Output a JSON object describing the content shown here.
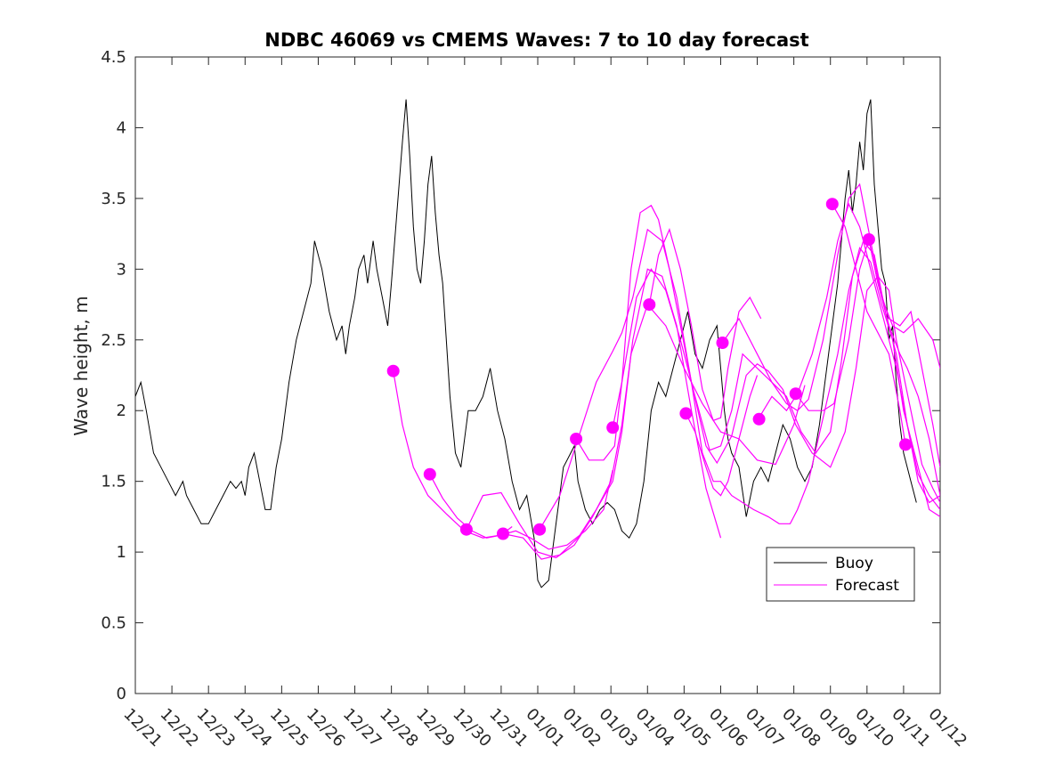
{
  "chart_data": {
    "type": "line",
    "title": "NDBC 46069 vs CMEMS Waves: 7 to 10 day forecast",
    "xlabel": "",
    "ylabel": "Wave height, m",
    "xlim": [
      0,
      22
    ],
    "ylim": [
      0,
      4.5
    ],
    "x_tick_labels": [
      "12/21",
      "12/22",
      "12/23",
      "12/24",
      "12/25",
      "12/26",
      "12/27",
      "12/28",
      "12/29",
      "12/30",
      "12/31",
      "01/01",
      "01/02",
      "01/03",
      "01/04",
      "01/05",
      "01/06",
      "01/07",
      "01/08",
      "01/09",
      "01/10",
      "01/11",
      "01/12"
    ],
    "y_ticks": [
      0,
      0.5,
      1,
      1.5,
      2,
      2.5,
      3,
      3.5,
      4,
      4.5
    ],
    "y_tick_labels": [
      "0",
      "0.5",
      "1",
      "1.5",
      "2",
      "2.5",
      "3",
      "3.5",
      "4",
      "4.5"
    ],
    "colors": {
      "buoy": "#000000",
      "forecast": "#ff00ff"
    },
    "legend": {
      "location": "bottom-right",
      "entries": [
        "Buoy",
        "Forecast"
      ]
    },
    "buoy": {
      "name": "Buoy",
      "x": [
        0,
        0.15,
        0.3,
        0.5,
        0.7,
        0.9,
        1.1,
        1.3,
        1.4,
        1.6,
        1.8,
        2.0,
        2.2,
        2.4,
        2.6,
        2.75,
        2.9,
        3.0,
        3.1,
        3.25,
        3.4,
        3.55,
        3.7,
        3.85,
        4.0,
        4.2,
        4.4,
        4.6,
        4.8,
        4.9,
        5.1,
        5.3,
        5.4,
        5.5,
        5.65,
        5.75,
        5.85,
        6.0,
        6.1,
        6.25,
        6.35,
        6.5,
        6.6,
        6.75,
        6.9,
        7.0,
        7.15,
        7.3,
        7.4,
        7.5,
        7.6,
        7.7,
        7.8,
        7.9,
        8.0,
        8.1,
        8.2,
        8.3,
        8.4,
        8.5,
        8.6,
        8.75,
        8.9,
        9.1,
        9.3,
        9.5,
        9.7,
        9.9,
        10.1,
        10.3,
        10.5,
        10.7,
        10.9,
        11.0,
        11.1,
        11.3,
        11.5,
        11.7,
        11.9,
        12.0,
        12.1,
        12.3,
        12.5,
        12.7,
        12.9,
        13.1,
        13.3,
        13.5,
        13.7,
        13.9,
        14.1,
        14.3,
        14.5,
        14.7,
        14.9,
        15.1,
        15.3,
        15.5,
        15.7,
        15.9,
        16.0,
        16.1,
        16.2,
        16.3,
        16.5,
        16.7,
        16.9,
        17.1,
        17.3,
        17.5,
        17.7,
        17.9,
        18.1,
        18.3,
        18.5,
        18.7,
        18.9,
        19.0,
        19.2,
        19.4,
        19.5,
        19.6,
        19.7,
        19.8,
        19.9,
        20.0,
        20.1,
        20.2,
        20.3,
        20.4,
        20.5,
        20.6,
        20.7,
        20.8,
        20.9,
        21.0,
        21.1,
        21.2,
        21.35
      ],
      "y": [
        2.1,
        2.2,
        2.0,
        1.7,
        1.6,
        1.5,
        1.4,
        1.5,
        1.4,
        1.3,
        1.2,
        1.2,
        1.3,
        1.4,
        1.5,
        1.45,
        1.5,
        1.4,
        1.6,
        1.7,
        1.5,
        1.3,
        1.3,
        1.6,
        1.8,
        2.2,
        2.5,
        2.7,
        2.9,
        3.2,
        3.0,
        2.7,
        2.6,
        2.5,
        2.6,
        2.4,
        2.6,
        2.8,
        3.0,
        3.1,
        2.9,
        3.2,
        3.0,
        2.8,
        2.6,
        2.9,
        3.4,
        3.9,
        4.2,
        3.8,
        3.3,
        3.0,
        2.9,
        3.2,
        3.6,
        3.8,
        3.4,
        3.1,
        2.9,
        2.5,
        2.1,
        1.7,
        1.6,
        2.0,
        2.0,
        2.1,
        2.3,
        2.0,
        1.8,
        1.5,
        1.3,
        1.4,
        1.1,
        0.8,
        0.75,
        0.8,
        1.2,
        1.6,
        1.7,
        1.75,
        1.5,
        1.3,
        1.2,
        1.3,
        1.35,
        1.3,
        1.15,
        1.1,
        1.2,
        1.5,
        2.0,
        2.2,
        2.1,
        2.3,
        2.5,
        2.7,
        2.4,
        2.3,
        2.5,
        2.6,
        2.3,
        2.0,
        1.8,
        1.7,
        1.6,
        1.25,
        1.5,
        1.6,
        1.5,
        1.7,
        1.9,
        1.8,
        1.6,
        1.5,
        1.6,
        1.9,
        2.3,
        2.5,
        2.9,
        3.5,
        3.7,
        3.4,
        3.6,
        3.9,
        3.7,
        4.1,
        4.2,
        3.6,
        3.3,
        3.0,
        2.9,
        2.5,
        2.6,
        2.2,
        1.9,
        1.7,
        1.6,
        1.5,
        1.35
      ]
    },
    "forecast_lines": [
      {
        "x": [
          7.05,
          7.3,
          7.6,
          8.0,
          8.5,
          9.0,
          9.5,
          10.0,
          10.3
        ],
        "y": [
          2.28,
          1.9,
          1.6,
          1.4,
          1.27,
          1.15,
          1.1,
          1.12,
          1.18
        ]
      },
      {
        "x": [
          8.05,
          8.4,
          8.8,
          9.2,
          9.6,
          10.0,
          10.4,
          10.8,
          11.3,
          11.8,
          12.3,
          12.8,
          13.05
        ],
        "y": [
          1.55,
          1.38,
          1.24,
          1.15,
          1.1,
          1.12,
          1.15,
          1.1,
          1.02,
          1.05,
          1.15,
          1.3,
          1.58
        ]
      },
      {
        "x": [
          9.05,
          9.5,
          10.0,
          10.5,
          11.0,
          11.5,
          12.0,
          12.5,
          13.0,
          13.3,
          13.6,
          14.0,
          14.4,
          14.8,
          15.2,
          15.6,
          16.0
        ],
        "y": [
          1.16,
          1.4,
          1.42,
          1.2,
          1.0,
          0.96,
          1.05,
          1.25,
          1.5,
          1.9,
          2.5,
          3.0,
          2.95,
          2.6,
          2.0,
          1.45,
          1.1
        ]
      },
      {
        "x": [
          10.05,
          10.6,
          11.1,
          11.6,
          12.1,
          12.6,
          13.05,
          13.3,
          13.55,
          14.0,
          14.5,
          15.0,
          15.5,
          16.0,
          16.5,
          17.0,
          17.5,
          18.0,
          18.3
        ],
        "y": [
          1.13,
          1.1,
          0.95,
          0.98,
          1.1,
          1.3,
          1.5,
          1.85,
          2.4,
          2.75,
          2.6,
          2.3,
          2.05,
          1.85,
          1.8,
          1.65,
          1.62,
          1.9,
          2.18
        ]
      },
      {
        "x": [
          11.05,
          11.6,
          12.1,
          12.6,
          13.05,
          13.3,
          13.6,
          14.0,
          14.4,
          14.8,
          15.2,
          15.6,
          15.9,
          16.3,
          16.7,
          17.0,
          17.3,
          17.7,
          18.05,
          18.5,
          19.0,
          19.4,
          19.7,
          20.0,
          20.3,
          20.6,
          20.8,
          21.2,
          21.5,
          21.8,
          22.0
        ],
        "y": [
          1.16,
          1.4,
          1.8,
          2.2,
          2.42,
          2.55,
          2.8,
          3.28,
          3.2,
          2.8,
          2.2,
          1.75,
          1.63,
          1.82,
          2.25,
          2.33,
          2.28,
          2.15,
          1.9,
          1.7,
          1.6,
          1.85,
          2.3,
          2.85,
          2.95,
          2.85,
          2.5,
          2.0,
          1.62,
          1.45,
          1.35
        ]
      },
      {
        "x": [
          12.05,
          12.4,
          12.8,
          13.1,
          13.3,
          13.55,
          13.8,
          14.1,
          14.3,
          14.6,
          14.9,
          15.2,
          15.5,
          15.8,
          16.0,
          16.3,
          16.6,
          16.9,
          17.3,
          17.6,
          17.9,
          18.1,
          18.4,
          18.8,
          19.2,
          19.5,
          19.8,
          20.1,
          20.4,
          20.7,
          21.0,
          21.4,
          21.7,
          22.0
        ],
        "y": [
          1.8,
          1.65,
          1.65,
          1.75,
          2.2,
          3.0,
          3.4,
          3.45,
          3.35,
          3.0,
          2.6,
          2.2,
          1.7,
          1.5,
          1.5,
          1.4,
          1.35,
          1.3,
          1.25,
          1.2,
          1.2,
          1.3,
          1.5,
          1.95,
          2.4,
          2.85,
          3.15,
          3.05,
          2.75,
          2.5,
          2.0,
          1.6,
          1.3,
          1.25
        ]
      },
      {
        "x": [
          13.05,
          13.3,
          13.7,
          14.1,
          14.5,
          14.9,
          15.3,
          15.7,
          16.0,
          16.3,
          16.6,
          17.0,
          17.4,
          17.8,
          18.2,
          18.6,
          19.0,
          19.3,
          19.6,
          19.9,
          20.2,
          20.5,
          20.8,
          21.1,
          21.4,
          21.7,
          22.0
        ],
        "y": [
          1.88,
          2.2,
          2.8,
          3.0,
          2.85,
          2.5,
          2.1,
          1.72,
          1.75,
          2.0,
          2.4,
          2.3,
          2.2,
          2.1,
          1.85,
          1.7,
          1.85,
          2.35,
          2.95,
          3.2,
          3.1,
          2.7,
          2.4,
          1.9,
          1.55,
          1.4,
          1.3
        ]
      },
      {
        "x": [
          14.05,
          14.3,
          14.6,
          14.9,
          15.2,
          15.5,
          15.8,
          16.0,
          16.2,
          16.5,
          16.8,
          17.1
        ],
        "y": [
          2.75,
          3.1,
          3.28,
          3.0,
          2.6,
          2.15,
          1.93,
          1.95,
          2.3,
          2.7,
          2.8,
          2.65
        ]
      },
      {
        "x": [
          15.05,
          15.3,
          15.6,
          15.8,
          16.0,
          16.2,
          16.5,
          16.8,
          17.0
        ],
        "y": [
          1.98,
          1.85,
          1.6,
          1.45,
          1.4,
          1.5,
          1.8,
          2.1,
          2.25
        ]
      },
      {
        "x": [
          16.05,
          16.5,
          17.0,
          17.4,
          17.8,
          18.1,
          18.4,
          18.8,
          19.2,
          19.5,
          19.8,
          20.1,
          20.4,
          20.7,
          21.0,
          21.4,
          21.8,
          22.0
        ],
        "y": [
          2.48,
          2.65,
          2.4,
          2.2,
          2.05,
          2.0,
          2.08,
          2.5,
          3.1,
          3.5,
          3.6,
          3.2,
          2.8,
          2.6,
          2.55,
          2.65,
          2.5,
          2.3
        ]
      },
      {
        "x": [
          17.05,
          17.4,
          17.8,
          18.1,
          18.5,
          18.9,
          19.2,
          19.5,
          19.8,
          20.1,
          20.5,
          20.8,
          21.1,
          21.4,
          21.7,
          22.0
        ],
        "y": [
          1.95,
          2.1,
          2.0,
          2.12,
          2.4,
          2.8,
          3.2,
          3.46,
          3.3,
          3.0,
          2.6,
          2.3,
          1.9,
          1.5,
          1.35,
          1.4
        ]
      },
      {
        "x": [
          18.05,
          18.4,
          18.8,
          19.1,
          19.5,
          19.8,
          20.05,
          20.3,
          20.6,
          20.9,
          21.2,
          21.5,
          21.8,
          22.0
        ],
        "y": [
          2.12,
          2.0,
          2.0,
          2.05,
          2.5,
          3.0,
          3.21,
          2.9,
          2.65,
          2.6,
          2.7,
          2.3,
          1.9,
          1.6
        ]
      },
      {
        "x": [
          19.05,
          19.4,
          19.7,
          20.0,
          20.3,
          20.6,
          20.9,
          21.05
        ],
        "y": [
          3.46,
          3.3,
          3.0,
          2.7,
          2.55,
          2.4,
          2.0,
          1.76
        ]
      },
      {
        "x": [
          20.05,
          20.3,
          20.6,
          20.9,
          21.1,
          21.4,
          21.7,
          22.0
        ],
        "y": [
          3.21,
          2.9,
          2.6,
          2.4,
          2.3,
          2.1,
          1.8,
          1.4
        ]
      }
    ],
    "forecast_markers": {
      "x": [
        7.05,
        8.05,
        9.05,
        10.05,
        11.05,
        12.05,
        13.05,
        14.05,
        15.05,
        16.05,
        17.05,
        18.05,
        19.05,
        20.05,
        21.05
      ],
      "y": [
        2.28,
        1.55,
        1.16,
        1.13,
        1.16,
        1.8,
        1.88,
        2.75,
        1.98,
        2.48,
        1.94,
        2.12,
        3.46,
        3.21,
        1.76
      ]
    }
  }
}
